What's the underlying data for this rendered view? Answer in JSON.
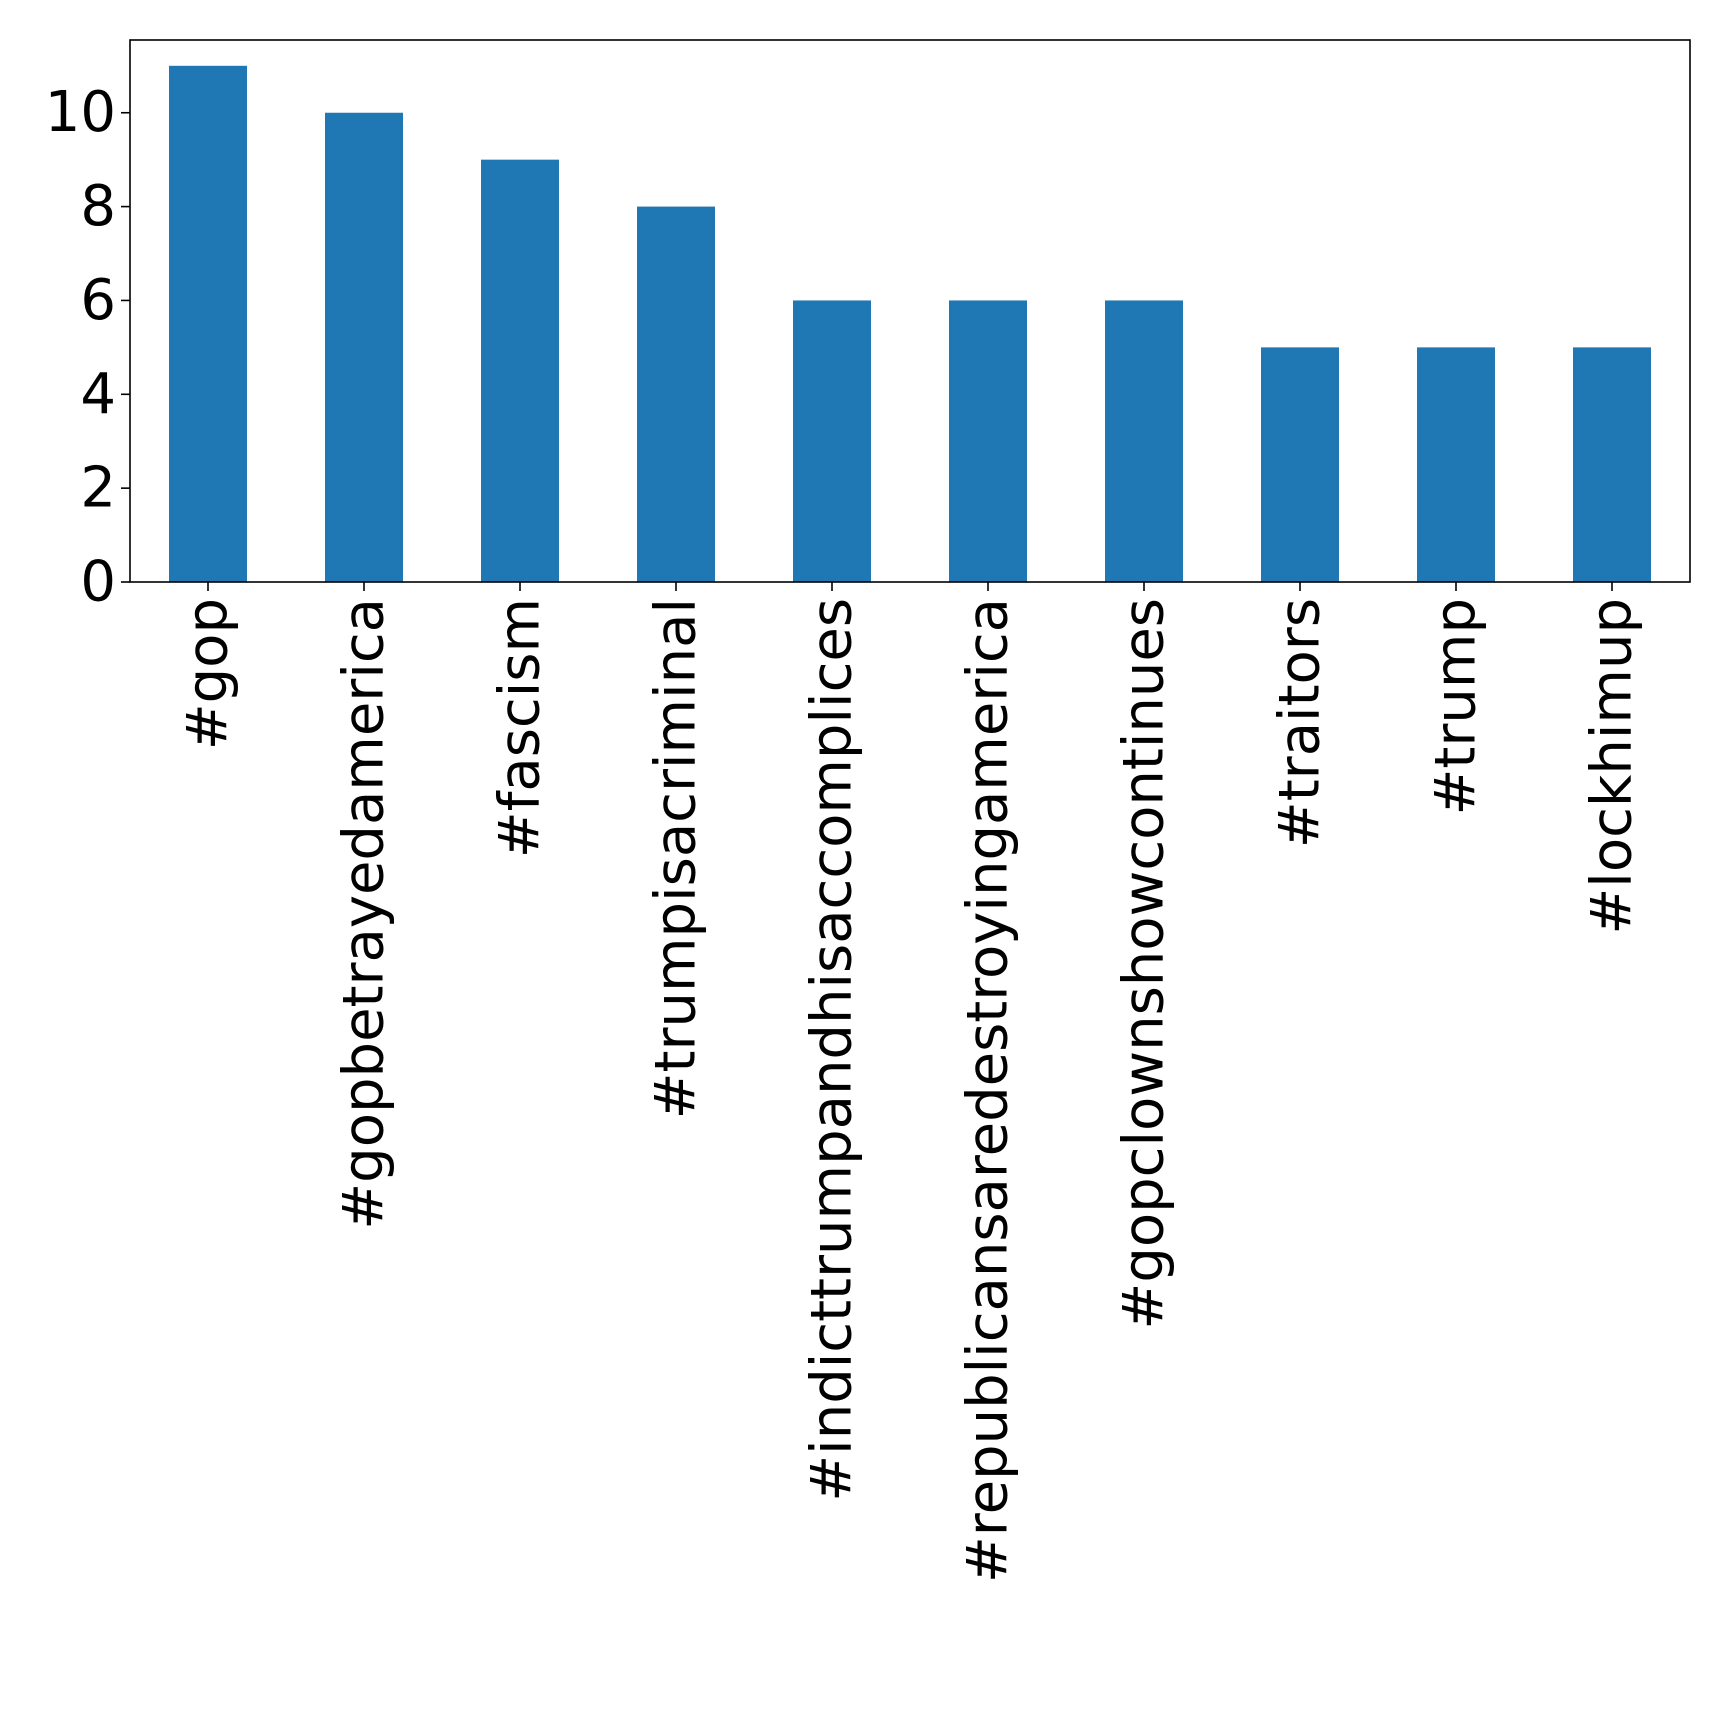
{
  "chart_data": {
    "type": "bar",
    "categories": [
      "#gop",
      "#gopbetrayedamerica",
      "#fascism",
      "#trumpisacriminal",
      "#indicttrumpandhisaccomplices",
      "#republicansaredestroyingamerica",
      "#gopclownshowcontinues",
      "#traitors",
      "#trump",
      "#lockhimup"
    ],
    "values": [
      11,
      10,
      9,
      8,
      6,
      6,
      6,
      5,
      5,
      5
    ],
    "ylim": [
      0,
      11.55
    ],
    "yticks": [
      0,
      2,
      4,
      6,
      8,
      10
    ],
    "bar_color": "#1f77b4",
    "grid": false,
    "title": "",
    "xlabel": "",
    "ylabel": ""
  }
}
